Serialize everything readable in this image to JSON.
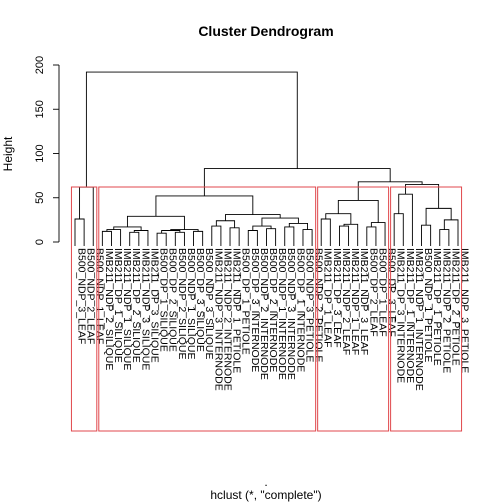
{
  "chart_data": {
    "type": "dendrogram",
    "title": "Cluster Dendrogram",
    "ylabel": "Height",
    "xlabel_dot": ".",
    "xlabel": "hclust (*, \"complete\")",
    "ylim": [
      0,
      200
    ],
    "yticks": [
      0,
      50,
      100,
      150,
      200
    ],
    "leaves": [
      "B500_NDP_3_LEAF",
      "B500_NDP_2_LEAF",
      "B500_NDP_1_LEAF",
      "IMB211_NDP_2_SILIQUE",
      "IMB211_DP_1_SILIQUE",
      "IMB211_NDP_1_SILIQUE",
      "IMB211_DP_2_SILIQUE",
      "IMB211_NDP_3_SILIQUE",
      "IMB211_DP_3_SILIQUE",
      "B500_DP_1_SILIQUE",
      "B500_DP_2_SILIQUE",
      "B500_NDP_2_SILIQUE",
      "B500_NDP_1_SILIQUE",
      "B500_DP_3_SILIQUE",
      "B500_NDP_3_SILIQUE",
      "IMB211_NDP_3_INTERNODE",
      "IMB211_NDP_2_INTERNODE",
      "IMB211_NDP_1_PETIOLE",
      "B500_DP_1_PETIOLE",
      "B500_DP_3_INTERNODE",
      "B500_NDP_2_INTERNODE",
      "B500_DP_2_INTERNODE",
      "B500_NDP_1_INTERNODE",
      "B500_NDP_3_INTERNODE",
      "B500_DP_1_INTERNODE",
      "B500_NDP_3_PETIOLE",
      "B500_NDP_2_PETIOLE",
      "IMB211_DP_1_LEAF",
      "IMB211_DP_3_LEAF",
      "IMB211_NDP_2_LEAF",
      "IMB211_NDP_1_LEAF",
      "IMB211_NDP_3_LEAF",
      "B500_DP_2_LEAF",
      "B500_DP_1_LEAF",
      "B500_DP_3_LEAF",
      "IMB211_DP_3_INTERNODE",
      "IMB211_DP_1_INTERNODE",
      "IMB211_NDP_1_INTERNODE",
      "B500_NDP_1_PETIOLE",
      "IMB211_DP_1_PETIOLE",
      "IMB211_NDP_2_PETIOLE",
      "IMB211_DP_2_PETIOLE",
      "IMB211_NDP_3_PETIOLE"
    ],
    "merges": [
      {
        "children": [
          "L0",
          "L1"
        ],
        "height": 26,
        "id": "A"
      },
      {
        "children": [
          "A",
          "L2"
        ],
        "height": 62,
        "id": "B"
      },
      {
        "children": [
          "L3",
          "L4"
        ],
        "height": 12,
        "id": "C"
      },
      {
        "children": [
          "C",
          "L5"
        ],
        "height": 14,
        "id": "D"
      },
      {
        "children": [
          "L6",
          "L7"
        ],
        "height": 11,
        "id": "E"
      },
      {
        "children": [
          "E",
          "L8"
        ],
        "height": 13,
        "id": "F"
      },
      {
        "children": [
          "D",
          "F"
        ],
        "height": 17,
        "id": "G"
      },
      {
        "children": [
          "L9",
          "L10"
        ],
        "height": 10,
        "id": "H"
      },
      {
        "children": [
          "L11",
          "L12"
        ],
        "height": 11,
        "id": "I"
      },
      {
        "children": [
          "H",
          "I"
        ],
        "height": 13,
        "id": "J"
      },
      {
        "children": [
          "L13",
          "L14"
        ],
        "height": 12,
        "id": "K"
      },
      {
        "children": [
          "J",
          "K"
        ],
        "height": 14,
        "id": "M"
      },
      {
        "children": [
          "G",
          "M"
        ],
        "height": 29,
        "id": "N"
      },
      {
        "children": [
          "L15",
          "L16"
        ],
        "height": 18,
        "id": "O"
      },
      {
        "children": [
          "L17",
          "L18"
        ],
        "height": 16,
        "id": "P"
      },
      {
        "children": [
          "O",
          "P"
        ],
        "height": 24,
        "id": "Q"
      },
      {
        "children": [
          "L19",
          "L20"
        ],
        "height": 13,
        "id": "R"
      },
      {
        "children": [
          "L21",
          "L22"
        ],
        "height": 15,
        "id": "S"
      },
      {
        "children": [
          "R",
          "S"
        ],
        "height": 18,
        "id": "T"
      },
      {
        "children": [
          "L23",
          "L24"
        ],
        "height": 17,
        "id": "U"
      },
      {
        "children": [
          "L25",
          "L26"
        ],
        "height": 14,
        "id": "V"
      },
      {
        "children": [
          "U",
          "V"
        ],
        "height": 21,
        "id": "W"
      },
      {
        "children": [
          "T",
          "W"
        ],
        "height": 27,
        "id": "X"
      },
      {
        "children": [
          "Q",
          "X"
        ],
        "height": 31,
        "id": "Y"
      },
      {
        "children": [
          "N",
          "Y"
        ],
        "height": 52,
        "id": "Z"
      },
      {
        "children": [
          "L27",
          "L28"
        ],
        "height": 26,
        "id": "AA"
      },
      {
        "children": [
          "L29",
          "L30"
        ],
        "height": 18,
        "id": "AB"
      },
      {
        "children": [
          "AB",
          "L31"
        ],
        "height": 20,
        "id": "AC"
      },
      {
        "children": [
          "AA",
          "AC"
        ],
        "height": 32,
        "id": "AD"
      },
      {
        "children": [
          "L32",
          "L33"
        ],
        "height": 17,
        "id": "AE"
      },
      {
        "children": [
          "AE",
          "L34"
        ],
        "height": 22,
        "id": "AF"
      },
      {
        "children": [
          "AD",
          "AF"
        ],
        "height": 47,
        "id": "AG"
      },
      {
        "children": [
          "L35",
          "L36"
        ],
        "height": 32,
        "id": "AH"
      },
      {
        "children": [
          "AH",
          "L37"
        ],
        "height": 54,
        "id": "AI"
      },
      {
        "children": [
          "L38",
          "L39"
        ],
        "height": 19,
        "id": "AJ"
      },
      {
        "children": [
          "L40",
          "L41"
        ],
        "height": 14,
        "id": "AK"
      },
      {
        "children": [
          "AK",
          "L42"
        ],
        "height": 25,
        "id": "AL"
      },
      {
        "children": [
          "AJ",
          "AL"
        ],
        "height": 38,
        "id": "AM"
      },
      {
        "children": [
          "AI",
          "AM"
        ],
        "height": 65,
        "id": "AN"
      },
      {
        "children": [
          "AG",
          "AN"
        ],
        "height": 68,
        "id": "AO"
      },
      {
        "children": [
          "Z",
          "AO"
        ],
        "height": 83,
        "id": "AP"
      },
      {
        "children": [
          "B",
          "AP"
        ],
        "height": 192,
        "id": "ROOT"
      }
    ],
    "clusters": [
      {
        "first_leaf": 0,
        "last_leaf": 2
      },
      {
        "first_leaf": 3,
        "last_leaf": 26
      },
      {
        "first_leaf": 27,
        "last_leaf": 34
      },
      {
        "first_leaf": 35,
        "last_leaf": 42
      }
    ],
    "cluster_color": "#e0474c",
    "grid": false
  }
}
